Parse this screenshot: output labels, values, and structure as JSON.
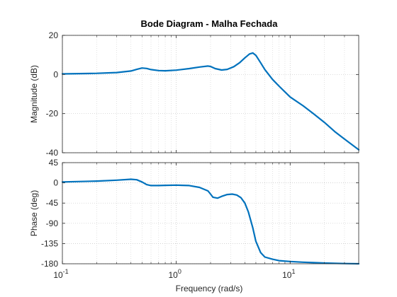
{
  "chart_data": {
    "type": "line",
    "title": "Bode Diagram - Malha Fechada",
    "xlabel": "Frequency  (rad/s)",
    "xscale": "log",
    "xlim": [
      0.1,
      40
    ],
    "x_ticks": [
      {
        "value": 0.1,
        "base": "10",
        "exp": "-1"
      },
      {
        "value": 1,
        "base": "10",
        "exp": "0"
      },
      {
        "value": 10,
        "base": "10",
        "exp": "1"
      }
    ],
    "grid": "on (major and minor)",
    "line_color": "#0072BD",
    "panels": [
      {
        "name": "magnitude",
        "ylabel": "Magnitude (dB)",
        "ylim": [
          -40,
          20
        ],
        "yticks": [
          20,
          0,
          -20,
          -40
        ],
        "x": [
          0.1,
          0.2,
          0.3,
          0.4,
          0.45,
          0.5,
          0.55,
          0.6,
          0.7,
          0.8,
          1.0,
          1.3,
          1.6,
          1.9,
          2.0,
          2.2,
          2.5,
          2.8,
          3.2,
          3.6,
          4.0,
          4.4,
          4.7,
          5.0,
          5.5,
          6.0,
          7.0,
          8.0,
          10,
          13,
          16,
          20,
          25,
          30,
          40
        ],
        "y": [
          0.3,
          0.6,
          1.0,
          1.8,
          2.6,
          3.3,
          3.1,
          2.5,
          2.0,
          1.9,
          2.2,
          3.0,
          3.8,
          4.3,
          4.1,
          3.0,
          2.3,
          2.6,
          4.0,
          6.0,
          8.5,
          10.5,
          11.0,
          9.8,
          6.0,
          2.5,
          -2.5,
          -6.0,
          -11.5,
          -16.0,
          -20.0,
          -24.5,
          -29.5,
          -33.0,
          -38.5
        ]
      },
      {
        "name": "phase",
        "ylabel": "Phase (deg)",
        "ylim": [
          -180,
          45
        ],
        "yticks": [
          45,
          0,
          -45,
          -90,
          -135,
          -180
        ],
        "x": [
          0.1,
          0.2,
          0.3,
          0.4,
          0.45,
          0.5,
          0.55,
          0.6,
          0.7,
          0.8,
          1.0,
          1.3,
          1.6,
          1.9,
          2.0,
          2.1,
          2.3,
          2.5,
          2.8,
          3.1,
          3.4,
          3.7,
          4.0,
          4.3,
          4.7,
          5.0,
          5.5,
          6.0,
          7.0,
          8.0,
          10,
          13,
          16,
          20,
          30,
          40
        ],
        "y": [
          2,
          4,
          6,
          8,
          7,
          2,
          -4,
          -6,
          -6,
          -5.5,
          -5,
          -6,
          -10,
          -18,
          -25,
          -32,
          -34,
          -30,
          -26,
          -25,
          -27,
          -33,
          -45,
          -65,
          -100,
          -130,
          -155,
          -165,
          -170,
          -173,
          -175,
          -176.5,
          -177.5,
          -178.5,
          -179.5,
          -180
        ]
      }
    ]
  }
}
